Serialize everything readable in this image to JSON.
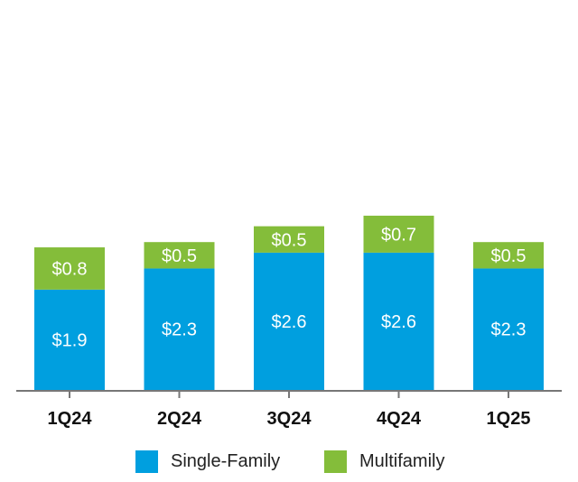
{
  "chart_data": {
    "type": "bar",
    "stacked": true,
    "categories": [
      "1Q24",
      "2Q24",
      "3Q24",
      "4Q24",
      "1Q25"
    ],
    "series": [
      {
        "name": "Single-Family",
        "color": "#009fdf",
        "values": [
          1.9,
          2.3,
          2.6,
          2.6,
          2.3
        ],
        "labels": [
          "$1.9",
          "$2.3",
          "$2.6",
          "$2.6",
          "$2.3"
        ]
      },
      {
        "name": "Multifamily",
        "color": "#84bd3a",
        "values": [
          0.8,
          0.5,
          0.5,
          0.7,
          0.5
        ],
        "labels": [
          "$0.8",
          "$0.5",
          "$0.5",
          "$0.7",
          "$0.5"
        ]
      }
    ],
    "title": "",
    "xlabel": "",
    "ylabel": "",
    "ylim": [
      0,
      4.2
    ],
    "grid": false,
    "legend_position": "bottom-center",
    "axis_color": "#777777"
  }
}
